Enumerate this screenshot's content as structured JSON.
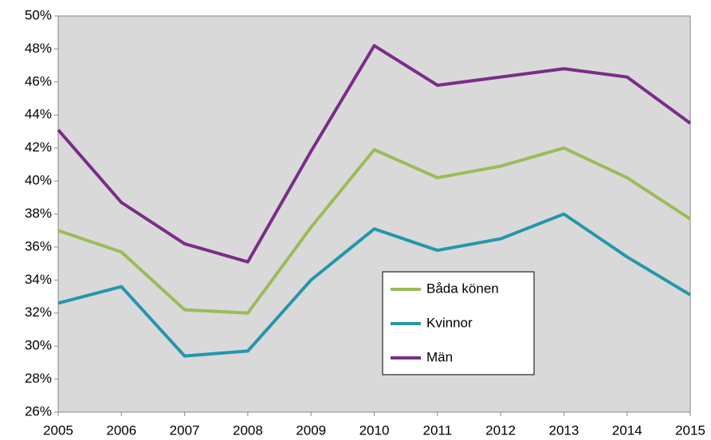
{
  "chart_data": {
    "type": "line",
    "x": [
      2005,
      2006,
      2007,
      2008,
      2009,
      2010,
      2011,
      2012,
      2013,
      2014,
      2015
    ],
    "series": [
      {
        "name": "Båda könen",
        "color": "#9bbb59",
        "values": [
          37.0,
          35.7,
          32.2,
          32.0,
          37.2,
          41.9,
          40.2,
          40.9,
          42.0,
          40.2,
          37.7
        ]
      },
      {
        "name": "Kvinnor",
        "color": "#2596ab",
        "values": [
          32.6,
          33.6,
          29.4,
          29.7,
          34.0,
          37.1,
          35.8,
          36.5,
          38.0,
          35.4,
          33.1
        ]
      },
      {
        "name": "Män",
        "color": "#7a2d88",
        "values": [
          43.1,
          38.7,
          36.2,
          35.1,
          41.8,
          48.2,
          45.8,
          46.3,
          46.8,
          46.3,
          43.5
        ]
      }
    ],
    "xlim": [
      2005,
      2015
    ],
    "xticks": [
      2005,
      2006,
      2007,
      2008,
      2009,
      2010,
      2011,
      2012,
      2013,
      2014,
      2015
    ],
    "ylim": [
      26,
      50
    ],
    "yticks": [
      {
        "value": 26,
        "label": "26%"
      },
      {
        "value": 28,
        "label": "28%"
      },
      {
        "value": 30,
        "label": "30%"
      },
      {
        "value": 32,
        "label": "32%"
      },
      {
        "value": 34,
        "label": "34%"
      },
      {
        "value": 36,
        "label": "36%"
      },
      {
        "value": 38,
        "label": "38%"
      },
      {
        "value": 40,
        "label": "40%"
      },
      {
        "value": 42,
        "label": "42%"
      },
      {
        "value": 44,
        "label": "44%"
      },
      {
        "value": 46,
        "label": "46%"
      },
      {
        "value": 48,
        "label": "48%"
      },
      {
        "value": 50,
        "label": "50%"
      }
    ]
  }
}
